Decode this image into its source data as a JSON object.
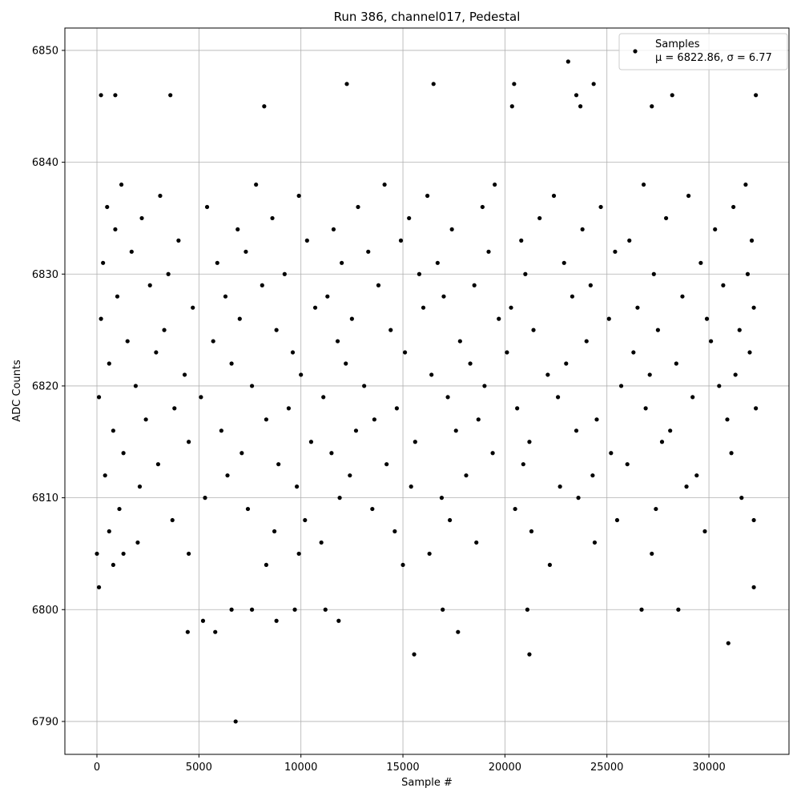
{
  "chart_data": {
    "type": "scatter",
    "title": "Run 386, channel017, Pedestal",
    "x_label": "Sample #",
    "y_label": "ADC Counts",
    "annotation": "μ = 6822.86, σ = 6.77",
    "legend_position": "upper right",
    "grid": true,
    "xlim": [
      -1571,
      33924
    ],
    "ylim": [
      6787.06,
      6852.0
    ],
    "xticks": [
      0,
      5000,
      10000,
      15000,
      20000,
      25000,
      30000
    ],
    "yticks": [
      6790,
      6800,
      6810,
      6820,
      6830,
      6840,
      6850
    ],
    "x": [
      6800,
      4450,
      5800,
      15550,
      21200,
      17700,
      30950,
      23100,
      12250,
      16500,
      20450,
      24350,
      32300,
      200,
      900,
      3600,
      23500,
      28200,
      8200,
      20350,
      27200,
      23700,
      0,
      100,
      9700,
      11200,
      16950,
      21100,
      26700,
      28500,
      11850,
      8800,
      5200,
      7600,
      6600,
      32200,
      1200,
      7800,
      14100,
      19500,
      26800,
      31800,
      3100,
      9900,
      16200,
      22400,
      29000,
      500,
      5400,
      12800,
      18900,
      24700,
      31200,
      2200,
      8600,
      15300,
      21700,
      27900,
      900,
      6900,
      11600,
      17400,
      23800,
      30300,
      4000,
      10300,
      14900,
      20800,
      26100,
      32100,
      1700,
      7300,
      13300,
      19200,
      25400,
      300,
      5900,
      12000,
      16700,
      22900,
      29600,
      3500,
      9200,
      15800,
      21000,
      27300,
      31900,
      2600,
      8100,
      13800,
      18500,
      24200,
      30700,
      1000,
      6300,
      11300,
      17000,
      23300,
      28700,
      4700,
      10700,
      16000,
      20300,
      26500,
      32200,
      200,
      7000,
      12500,
      19700,
      25100,
      29900,
      3300,
      8800,
      14400,
      21400,
      27500,
      31500,
      1500,
      5700,
      11800,
      17800,
      24000,
      30100,
      2900,
      9600,
      15100,
      20100,
      26300,
      32000,
      600,
      6600,
      12200,
      18300,
      23000,
      28400,
      4300,
      10000,
      16400,
      22100,
      27100,
      31300,
      1900,
      7600,
      13100,
      19000,
      25700,
      30500,
      100,
      5100,
      11100,
      17200,
      22600,
      29200,
      3800,
      9400,
      14700,
      20600,
      26900,
      32300,
      2400,
      8300,
      13600,
      18700,
      24500,
      30900,
      800,
      6100,
      12700,
      17600,
      23500,
      28100,
      4500,
      10500,
      15600,
      21200,
      27700,
      1300,
      7100,
      11500,
      19400,
      25200,
      31100,
      3000,
      8900,
      14200,
      20900,
      26000,
      400,
      6400,
      12400,
      18100,
      24300,
      29400,
      2100,
      9800,
      15400,
      22700,
      28900,
      5300,
      11900,
      16900,
      23600,
      31600,
      1100,
      7400,
      13500,
      20500,
      27400,
      3700,
      10200,
      17300,
      25500,
      32200,
      600,
      8700,
      14600,
      21300,
      29800,
      2000,
      11000,
      18600,
      24400,
      1300,
      4500,
      9900,
      16300,
      27200,
      800,
      8300,
      15000,
      22200
    ],
    "series": [
      {
        "name": "Samples",
        "color": "#000000",
        "values": [
          6790,
          6798,
          6798,
          6796,
          6796,
          6798,
          6797,
          6849,
          6847,
          6847,
          6847,
          6847,
          6846,
          6846,
          6846,
          6846,
          6846,
          6846,
          6845,
          6845,
          6845,
          6845,
          6805,
          6802,
          6800,
          6800,
          6800,
          6800,
          6800,
          6800,
          6799,
          6799,
          6799,
          6800,
          6800,
          6802,
          6838,
          6838,
          6838,
          6838,
          6838,
          6838,
          6837,
          6837,
          6837,
          6837,
          6837,
          6836,
          6836,
          6836,
          6836,
          6836,
          6836,
          6835,
          6835,
          6835,
          6835,
          6835,
          6834,
          6834,
          6834,
          6834,
          6834,
          6834,
          6833,
          6833,
          6833,
          6833,
          6833,
          6833,
          6832,
          6832,
          6832,
          6832,
          6832,
          6831,
          6831,
          6831,
          6831,
          6831,
          6831,
          6830,
          6830,
          6830,
          6830,
          6830,
          6830,
          6829,
          6829,
          6829,
          6829,
          6829,
          6829,
          6828,
          6828,
          6828,
          6828,
          6828,
          6828,
          6827,
          6827,
          6827,
          6827,
          6827,
          6827,
          6826,
          6826,
          6826,
          6826,
          6826,
          6826,
          6825,
          6825,
          6825,
          6825,
          6825,
          6825,
          6824,
          6824,
          6824,
          6824,
          6824,
          6824,
          6823,
          6823,
          6823,
          6823,
          6823,
          6823,
          6822,
          6822,
          6822,
          6822,
          6822,
          6822,
          6821,
          6821,
          6821,
          6821,
          6821,
          6821,
          6820,
          6820,
          6820,
          6820,
          6820,
          6820,
          6819,
          6819,
          6819,
          6819,
          6819,
          6819,
          6818,
          6818,
          6818,
          6818,
          6818,
          6818,
          6817,
          6817,
          6817,
          6817,
          6817,
          6817,
          6816,
          6816,
          6816,
          6816,
          6816,
          6816,
          6815,
          6815,
          6815,
          6815,
          6815,
          6814,
          6814,
          6814,
          6814,
          6814,
          6814,
          6813,
          6813,
          6813,
          6813,
          6813,
          6812,
          6812,
          6812,
          6812,
          6812,
          6812,
          6811,
          6811,
          6811,
          6811,
          6811,
          6810,
          6810,
          6810,
          6810,
          6810,
          6809,
          6809,
          6809,
          6809,
          6809,
          6808,
          6808,
          6808,
          6808,
          6808,
          6807,
          6807,
          6807,
          6807,
          6807,
          6806,
          6806,
          6806,
          6806,
          6805,
          6805,
          6805,
          6805,
          6805,
          6804,
          6804,
          6804,
          6804
        ]
      }
    ]
  }
}
